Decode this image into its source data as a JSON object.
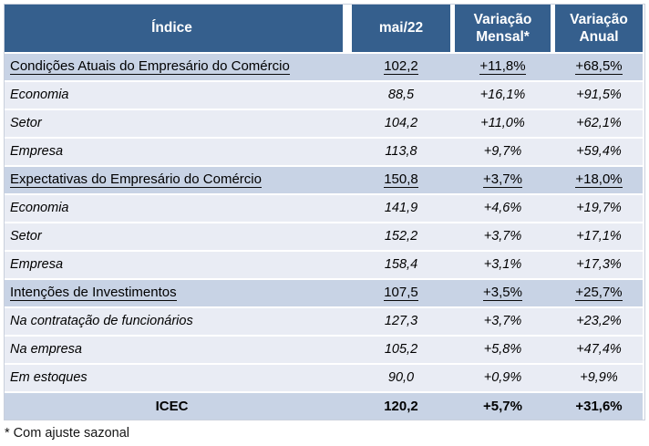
{
  "table": {
    "columns": [
      {
        "label": "Índice"
      },
      {
        "label": "mai/22"
      },
      {
        "label": "Variação Mensal*"
      },
      {
        "label": "Variação Anual"
      }
    ],
    "rows": [
      {
        "type": "section",
        "label": "Condições Atuais do Empresário do Comércio",
        "value": "102,2",
        "monthly": "+11,8%",
        "annual": "+68,5%"
      },
      {
        "type": "sub",
        "label": "Economia",
        "value": "88,5",
        "monthly": "+16,1%",
        "annual": "+91,5%"
      },
      {
        "type": "sub",
        "label": "Setor",
        "value": "104,2",
        "monthly": "+11,0%",
        "annual": "+62,1%"
      },
      {
        "type": "sub",
        "label": "Empresa",
        "value": "113,8",
        "monthly": "+9,7%",
        "annual": "+59,4%"
      },
      {
        "type": "section",
        "label": "Expectativas do Empresário do Comércio",
        "value": "150,8",
        "monthly": "+3,7%",
        "annual": "+18,0%"
      },
      {
        "type": "sub",
        "label": "Economia",
        "value": "141,9",
        "monthly": "+4,6%",
        "annual": "+19,7%"
      },
      {
        "type": "sub",
        "label": "Setor",
        "value": "152,2",
        "monthly": "+3,7%",
        "annual": "+17,1%"
      },
      {
        "type": "sub",
        "label": "Empresa",
        "value": "158,4",
        "monthly": "+3,1%",
        "annual": "+17,3%"
      },
      {
        "type": "section",
        "label": "Intenções de Investimentos",
        "value": "107,5",
        "monthly": "+3,5%",
        "annual": "+25,7%"
      },
      {
        "type": "sub",
        "label": "Na contratação de funcionários",
        "value": "127,3",
        "monthly": "+3,7%",
        "annual": "+23,2%"
      },
      {
        "type": "sub",
        "label": "Na empresa",
        "value": "105,2",
        "monthly": "+5,8%",
        "annual": "+47,4%"
      },
      {
        "type": "sub",
        "label": "Em estoques",
        "value": "90,0",
        "monthly": "+0,9%",
        "annual": "+9,9%"
      },
      {
        "type": "total",
        "label": "ICEC",
        "value": "120,2",
        "monthly": "+5,7%",
        "annual": "+31,6%"
      }
    ],
    "footnote": "* Com ajuste sazonal"
  },
  "colors": {
    "header_bg": "#355F8D",
    "header_text": "#FFFFFF",
    "section_row_bg": "#C8D3E5",
    "sub_row_bg": "#E9ECF4",
    "separator": "#FFFFFF",
    "text": "#000000"
  }
}
